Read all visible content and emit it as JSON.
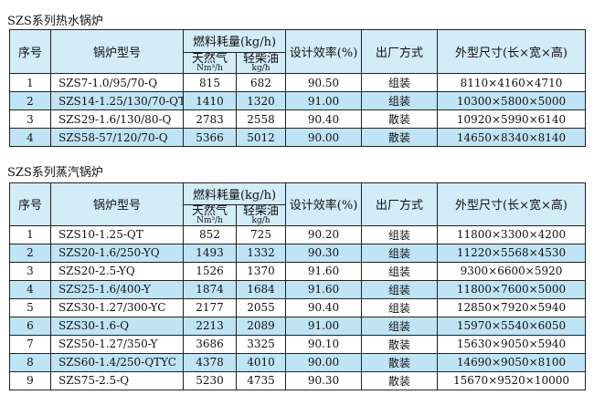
{
  "tables": [
    {
      "title": "SZS系列热水锅炉",
      "header": {
        "no": "序号",
        "model": "锅炉型号",
        "fuel": "燃料耗量(kg/h)",
        "gas": "天然气",
        "gas_unit": "Nm³/h",
        "oil": "轻柴油",
        "oil_unit": "kg/h",
        "efficiency": "设计效率(%)",
        "delivery": "出厂方式",
        "size": "外型尺寸(长×宽×高)"
      },
      "rows": [
        [
          "1",
          "SZS7-1.0/95/70-Q",
          "815",
          "682",
          "90.50",
          "组装",
          "8110×4160×4710"
        ],
        [
          "2",
          "SZS14-1.25/130/70-QT",
          "1410",
          "1320",
          "91.00",
          "组装",
          "10300×5800×5000"
        ],
        [
          "3",
          "SZS29-1.6/130/80-Q",
          "2783",
          "2558",
          "90.40",
          "散装",
          "10920×5990×6140"
        ],
        [
          "4",
          "SZS58-57/120/70-Q",
          "5366",
          "5012",
          "90.00",
          "散装",
          "14650×8340×8140"
        ]
      ]
    },
    {
      "title": "SZS系列蒸汽锅炉",
      "header": {
        "no": "序号",
        "model": "锅炉型号",
        "fuel": "燃料耗量(kg/h)",
        "gas": "天然气",
        "gas_unit": "Nm³/h",
        "oil": "轻柴油",
        "oil_unit": "kg/h",
        "efficiency": "设计效率(%)",
        "delivery": "出厂方式",
        "size": "外型尺寸(长×宽×高)"
      },
      "rows": [
        [
          "1",
          "SZS10-1.25-QT",
          "852",
          "725",
          "90.20",
          "组装",
          "11800×3300×4200"
        ],
        [
          "2",
          "SZS20-1.6/250-YQ",
          "1493",
          "1332",
          "90.30",
          "组装",
          "11220×5568×4530"
        ],
        [
          "3",
          "SZS20-2.5-YQ",
          "1526",
          "1370",
          "91.60",
          "组装",
          "9300×6600×5920"
        ],
        [
          "4",
          "SZS25-1.6/400-Y",
          "1874",
          "1684",
          "91.60",
          "组装",
          "11800×7600×5000"
        ],
        [
          "5",
          "SZS30-1.27/300-YC",
          "2177",
          "2055",
          "90.40",
          "组装",
          "12850×7920×5940"
        ],
        [
          "6",
          "SZS30-1.6-Q",
          "2213",
          "2089",
          "91.00",
          "组装",
          "15970×5540×6050"
        ],
        [
          "7",
          "SZS50-1.27/350-Y",
          "3686",
          "3325",
          "90.10",
          "散装",
          "15630×9050×5940"
        ],
        [
          "8",
          "SZS60-1.4/250-QTYC",
          "4378",
          "4010",
          "90.00",
          "散装",
          "14690×9050×8100"
        ],
        [
          "9",
          "SZS75-2.5-Q",
          "5230",
          "4735",
          "90.30",
          "散装",
          "15670×9520×10000"
        ]
      ]
    }
  ]
}
